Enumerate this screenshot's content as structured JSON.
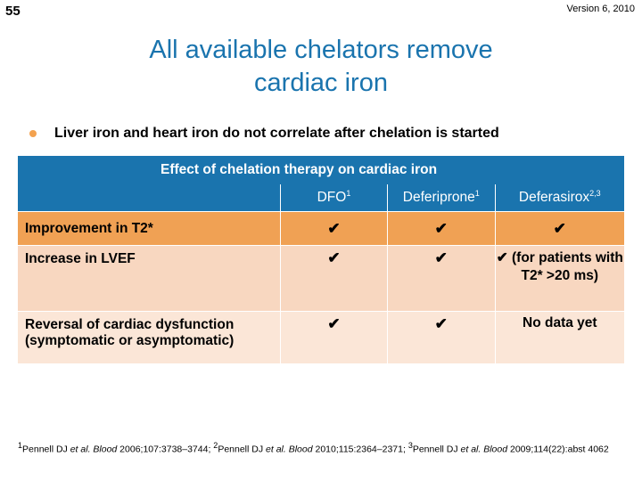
{
  "slide_number": "55",
  "version": "Version 6, 2010",
  "title_line1": "All available chelators remove",
  "title_line2": "cardiac iron",
  "bullet": "Liver iron and heart iron do not correlate after chelation is started",
  "table": {
    "caption": "Effect of chelation therapy on cardiac iron",
    "columns": [
      {
        "label": "DFO",
        "sup": "1"
      },
      {
        "label": "Deferiprone",
        "sup": "1"
      },
      {
        "label": "Deferasirox",
        "sup": "2,3"
      }
    ],
    "rows": [
      {
        "label": "Improvement in T2*",
        "c1": "✔",
        "c2": "✔",
        "c3": "✔"
      },
      {
        "label": "Increase in LVEF",
        "c1": "✔",
        "c2": "✔",
        "c3": "✔ (for patients with T2* >20 ms)"
      },
      {
        "label": "Reversal of cardiac dysfunction (symptomatic or asymptomatic)",
        "c1": "✔",
        "c2": "✔",
        "c3": "No data yet"
      }
    ]
  },
  "footnote": {
    "ref1_num": "1",
    "ref1_author": "Pennell DJ ",
    "ref1_etal": "et al. Blood",
    "ref1_cite": " 2006;107:3738–3744; ",
    "ref2_num": "2",
    "ref2_author": "Pennell DJ ",
    "ref2_etal": "et al. Blood",
    "ref2_cite": " 2010;115:2364–2371; ",
    "ref3_num": "3",
    "ref3_author": "Pennell DJ ",
    "ref3_etal": "et al. Blood",
    "ref3_cite": " 2009;114(22):abst 4062"
  },
  "colors": {
    "accent": "#1a74ae",
    "row1": "#f0a154",
    "row2": "#f8d7c0",
    "row3": "#fbe6d7",
    "bullet": "#f3a24f"
  }
}
